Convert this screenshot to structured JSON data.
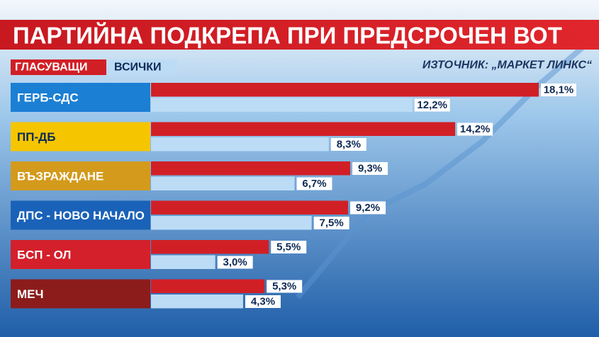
{
  "chart_data": {
    "type": "bar",
    "orientation": "horizontal",
    "title": "ПАРТИЙНА ПОДКРЕПА ПРИ ПРЕДСРОЧЕН ВОТ",
    "source": "ИЗТОЧНИК: „МАРКЕТ ЛИНКС“",
    "categories": [
      "ГЕРБ-СДС",
      "ПП-ДБ",
      "ВЪЗРАЖДАНЕ",
      "ДПС - НОВО НАЧАЛО",
      "БСП - ОЛ",
      "МЕЧ"
    ],
    "category_colors": [
      "#1b7fd4",
      "#f5c500",
      "#d39a1c",
      "#1a62b8",
      "#d3202b",
      "#8c1c1c"
    ],
    "category_text_colors": [
      "#ffffff",
      "#0d2a55",
      "#ffffff",
      "#ffffff",
      "#ffffff",
      "#ffffff"
    ],
    "series": [
      {
        "name": "ГЛАСУВАЩИ",
        "color": "#d11f26",
        "text_color": "#ffffff",
        "values": [
          18.1,
          14.2,
          9.3,
          9.2,
          5.5,
          5.3
        ],
        "value_labels": [
          "18,1%",
          "14,2%",
          "9,3%",
          "9,2%",
          "5,5%",
          "5,3%"
        ]
      },
      {
        "name": "ВСИЧКИ",
        "color": "#bcdcf6",
        "text_color": "#0d2a55",
        "values": [
          12.2,
          8.3,
          6.7,
          7.5,
          3.0,
          4.3
        ],
        "value_labels": [
          "12,2%",
          "8,3%",
          "6,7%",
          "7,5%",
          "3,0%",
          "4,3%"
        ]
      }
    ]
  }
}
